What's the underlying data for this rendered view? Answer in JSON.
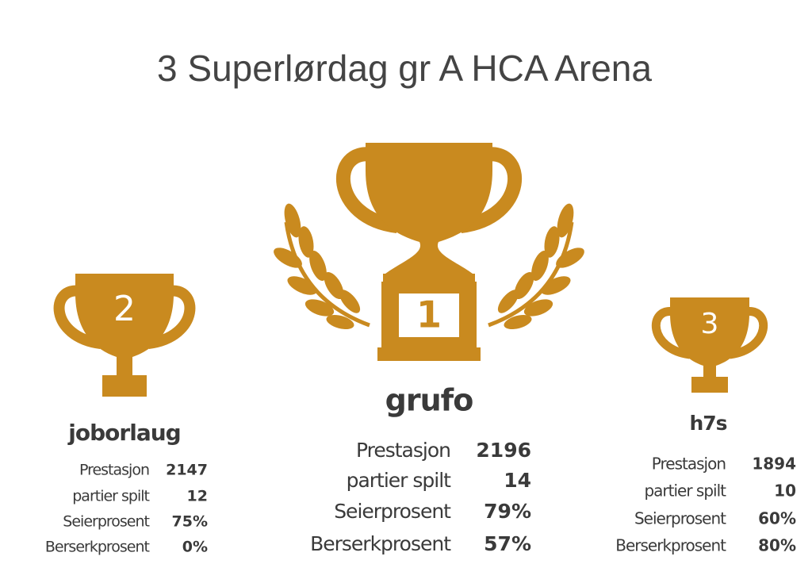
{
  "title": "3 Superlørdag gr A HCA Arena",
  "podium": [
    {
      "rank": "1",
      "name": "grufo",
      "stats": [
        [
          "Prestasjon",
          "2196"
        ],
        [
          "partier spilt",
          "14"
        ],
        [
          "Seierprosent",
          "79%"
        ],
        [
          "Berserkprosent",
          "57%"
        ]
      ]
    },
    {
      "rank": "2",
      "name": "joborlaug",
      "stats": [
        [
          "Prestasjon",
          "2147"
        ],
        [
          "partier spilt",
          "12"
        ],
        [
          "Seierprosent",
          "75%"
        ],
        [
          "Berserkprosent",
          "0%"
        ]
      ]
    },
    {
      "rank": "3",
      "name": "h7s",
      "stats": [
        [
          "Prestasjon",
          "1894"
        ],
        [
          "partier spilt",
          "10"
        ],
        [
          "Seierprosent",
          "60%"
        ],
        [
          "Berserkprosent",
          "80%"
        ]
      ]
    }
  ]
}
